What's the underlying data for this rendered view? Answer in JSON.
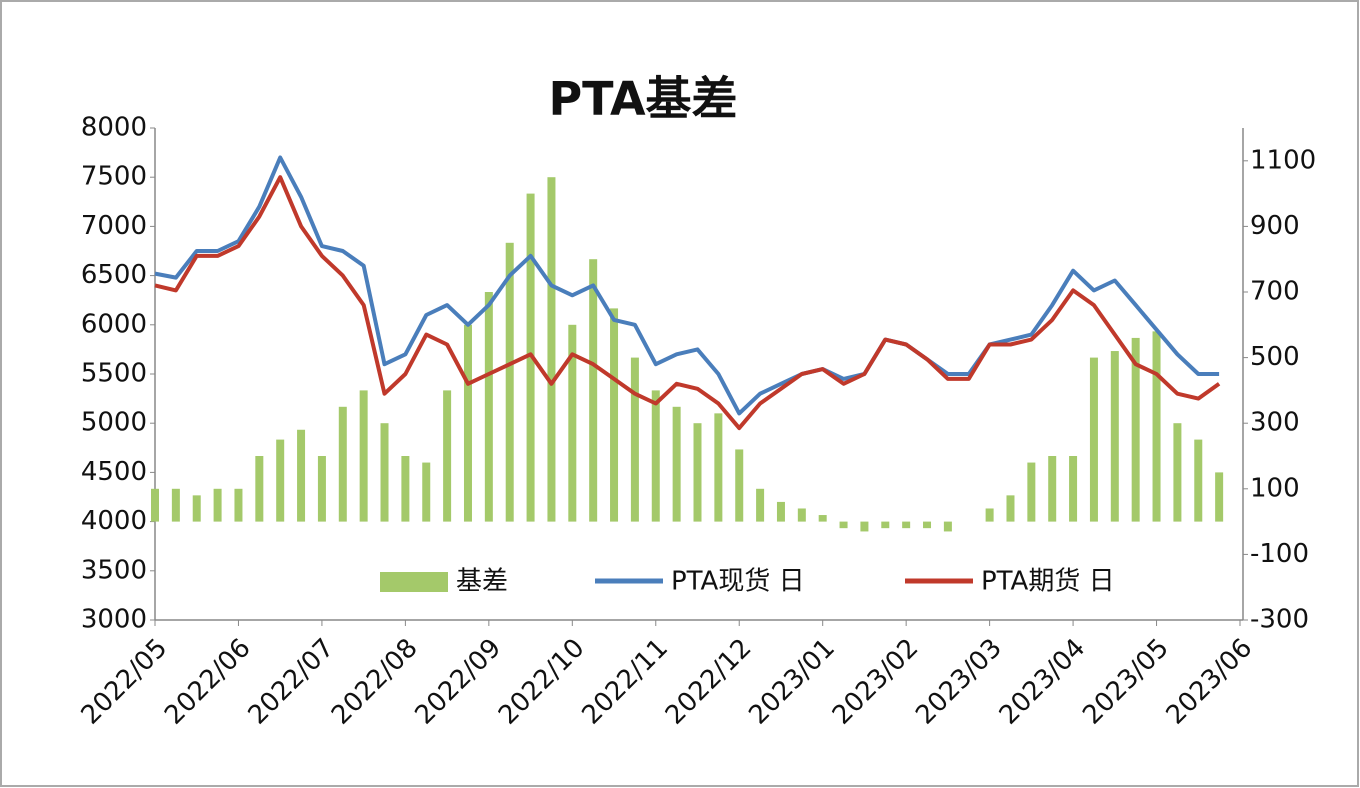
{
  "chart_data": {
    "type": "combo",
    "title": "PTA基差",
    "categories": [
      "2022/05",
      null,
      null,
      null,
      "2022/06",
      null,
      null,
      null,
      "2022/07",
      null,
      null,
      null,
      "2022/08",
      null,
      null,
      null,
      "2022/09",
      null,
      null,
      null,
      "2022/10",
      null,
      null,
      null,
      "2022/11",
      null,
      null,
      null,
      "2022/12",
      null,
      null,
      null,
      "2023/01",
      null,
      null,
      null,
      "2023/02",
      null,
      null,
      null,
      "2023/03",
      null,
      null,
      null,
      "2023/04",
      null,
      null,
      null,
      "2023/05",
      null,
      null,
      null,
      "2023/06"
    ],
    "series": [
      {
        "name": "基差",
        "type": "bar",
        "axis": "y2",
        "color": "#a4c96a",
        "values": [
          100,
          100,
          80,
          100,
          100,
          200,
          250,
          280,
          200,
          350,
          400,
          300,
          200,
          180,
          400,
          600,
          700,
          850,
          1000,
          1050,
          600,
          800,
          650,
          500,
          400,
          350,
          300,
          330,
          220,
          100,
          60,
          40,
          20,
          -20,
          -30,
          -20,
          -20,
          -20,
          -30,
          0,
          40,
          80,
          180,
          200,
          200,
          500,
          520,
          560,
          580,
          300,
          250,
          150,
          null
        ]
      },
      {
        "name": "PTA现货 日",
        "type": "line",
        "color": "#4a7ebb",
        "values": [
          6520,
          6480,
          6750,
          6750,
          6850,
          7200,
          7700,
          7300,
          6800,
          6750,
          6600,
          5600,
          5700,
          6100,
          6200,
          6000,
          6200,
          6500,
          6700,
          6400,
          6300,
          6400,
          6050,
          6000,
          5600,
          5700,
          5750,
          5500,
          5100,
          5300,
          5400,
          5500,
          5550,
          5450,
          5500,
          5850,
          5800,
          5650,
          5500,
          5500,
          5800,
          5850,
          5900,
          6200,
          6550,
          6350,
          6450,
          6200,
          5950,
          5700,
          5500,
          5500,
          null
        ]
      },
      {
        "name": "PTA期货 日",
        "type": "line",
        "color": "#c0392b",
        "values": [
          6400,
          6350,
          6700,
          6700,
          6800,
          7100,
          7500,
          7000,
          6700,
          6500,
          6200,
          5300,
          5500,
          5900,
          5800,
          5400,
          5500,
          5600,
          5700,
          5400,
          5700,
          5600,
          5450,
          5300,
          5200,
          5400,
          5350,
          5200,
          4950,
          5200,
          5350,
          5500,
          5550,
          5400,
          5500,
          5850,
          5800,
          5650,
          5450,
          5450,
          5800,
          5800,
          5850,
          6050,
          6350,
          6200,
          5900,
          5600,
          5500,
          5300,
          5250,
          5400,
          null
        ]
      }
    ],
    "ylim": [
      3000,
      8000
    ],
    "yticks": [
      3000,
      3500,
      4000,
      4500,
      5000,
      5500,
      6000,
      6500,
      7000,
      7500,
      8000
    ],
    "y2lim": [
      -300,
      1200
    ],
    "y2ticks": [
      -300,
      -100,
      100,
      300,
      500,
      700,
      900,
      1100
    ],
    "grid": false,
    "legend": "bottom"
  }
}
